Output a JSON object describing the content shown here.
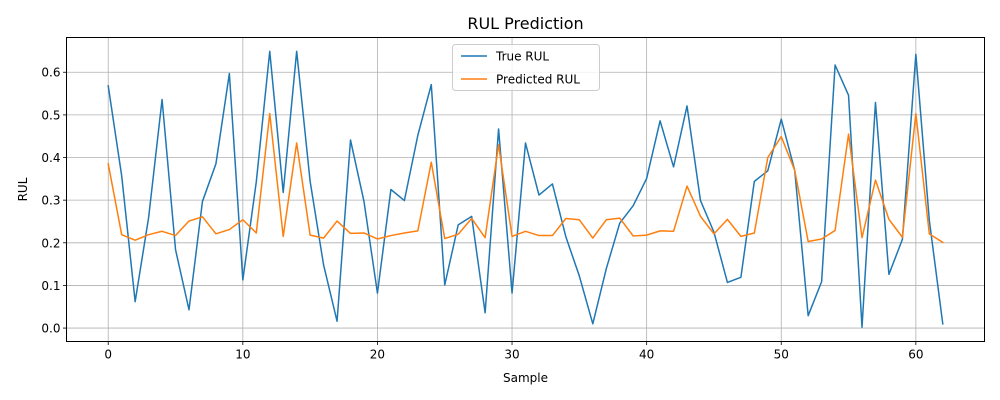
{
  "chart_data": {
    "type": "line",
    "title": "RUL Prediction",
    "xlabel": "Sample",
    "ylabel": "RUL",
    "xlim": [
      -3.1,
      65.1
    ],
    "ylim": [
      -0.0315,
      0.6815
    ],
    "xticks": [
      0,
      10,
      20,
      30,
      40,
      50,
      60
    ],
    "xtick_labels": [
      "0",
      "10",
      "20",
      "30",
      "40",
      "50",
      "60"
    ],
    "yticks": [
      0.0,
      0.1,
      0.2,
      0.3,
      0.4,
      0.5,
      0.6
    ],
    "ytick_labels": [
      "0.0",
      "0.1",
      "0.2",
      "0.3",
      "0.4",
      "0.5",
      "0.6"
    ],
    "grid": true,
    "legend_position": "top-center",
    "x": [
      0,
      1,
      2,
      3,
      4,
      5,
      6,
      7,
      8,
      9,
      10,
      11,
      12,
      13,
      14,
      15,
      16,
      17,
      18,
      19,
      20,
      21,
      22,
      23,
      24,
      25,
      26,
      27,
      28,
      29,
      30,
      31,
      32,
      33,
      34,
      35,
      36,
      37,
      38,
      39,
      40,
      41,
      42,
      43,
      44,
      45,
      46,
      47,
      48,
      49,
      50,
      51,
      52,
      53,
      54,
      55,
      56,
      57,
      58,
      59,
      60,
      61,
      62
    ],
    "series": [
      {
        "name": "True RUL",
        "color": "#1f77b4",
        "values": [
          0.568,
          0.357,
          0.062,
          0.259,
          0.536,
          0.184,
          0.043,
          0.297,
          0.385,
          0.597,
          0.113,
          0.343,
          0.649,
          0.318,
          0.649,
          0.344,
          0.148,
          0.016,
          0.441,
          0.297,
          0.082,
          0.325,
          0.299,
          0.452,
          0.571,
          0.101,
          0.242,
          0.262,
          0.036,
          0.467,
          0.082,
          0.434,
          0.312,
          0.338,
          0.214,
          0.122,
          0.01,
          0.139,
          0.246,
          0.287,
          0.351,
          0.486,
          0.378,
          0.521,
          0.299,
          0.225,
          0.107,
          0.119,
          0.344,
          0.369,
          0.49,
          0.37,
          0.029,
          0.109,
          0.617,
          0.546,
          0.002,
          0.529,
          0.126,
          0.208,
          0.642,
          0.253,
          0.01
        ]
      },
      {
        "name": "Predicted RUL",
        "color": "#ff7f0e",
        "values": [
          0.385,
          0.219,
          0.206,
          0.219,
          0.227,
          0.217,
          0.251,
          0.261,
          0.221,
          0.231,
          0.254,
          0.223,
          0.503,
          0.215,
          0.434,
          0.218,
          0.211,
          0.251,
          0.222,
          0.223,
          0.209,
          0.217,
          0.223,
          0.228,
          0.389,
          0.21,
          0.22,
          0.257,
          0.212,
          0.43,
          0.215,
          0.227,
          0.217,
          0.217,
          0.257,
          0.254,
          0.211,
          0.254,
          0.258,
          0.216,
          0.218,
          0.228,
          0.227,
          0.333,
          0.262,
          0.221,
          0.255,
          0.215,
          0.223,
          0.4,
          0.449,
          0.37,
          0.203,
          0.209,
          0.229,
          0.455,
          0.212,
          0.347,
          0.255,
          0.213,
          0.503,
          0.221,
          0.201
        ]
      }
    ]
  }
}
